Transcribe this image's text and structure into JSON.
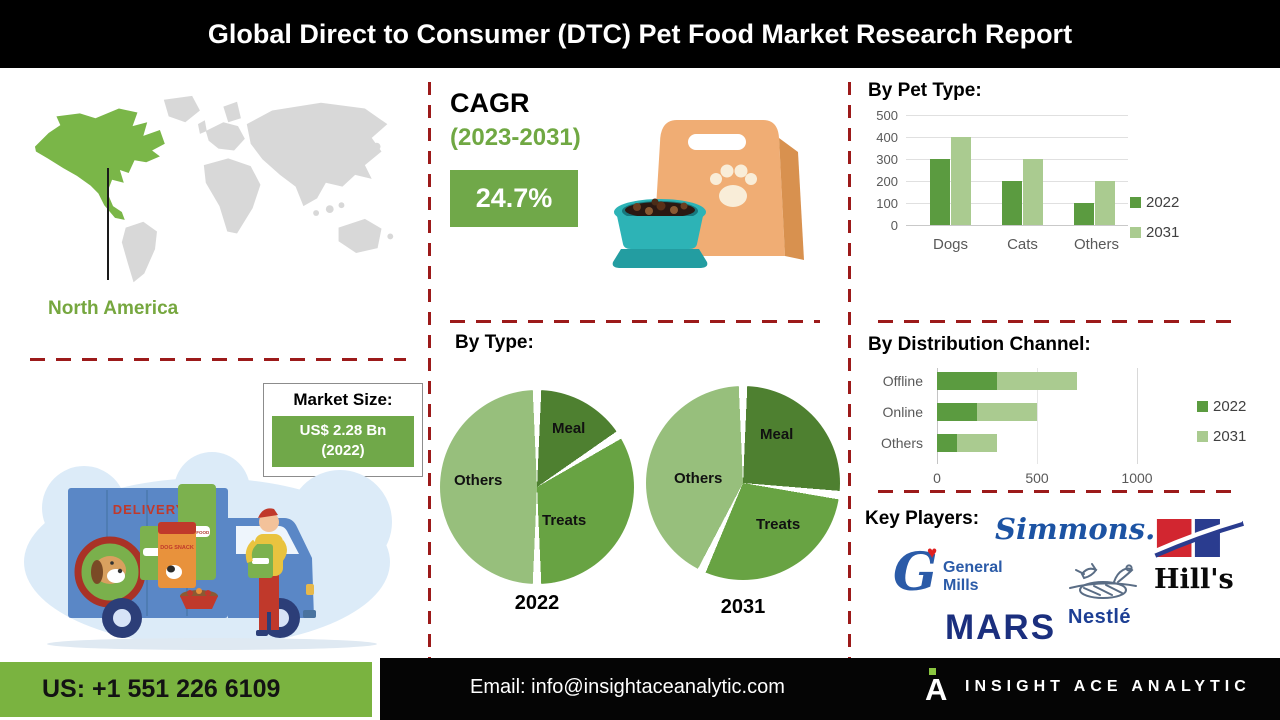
{
  "header": {
    "title": "Global Direct to Consumer (DTC) Pet Food Market Research Report"
  },
  "left": {
    "region_label": "North America",
    "market_size": {
      "label": "Market Size:",
      "value": "US$ 2.28 Bn",
      "year": "(2022)"
    },
    "truck": {
      "delivery": "DELIVERY",
      "bag_snack": "DOG SNACK",
      "bag_food": "DOG FOOD"
    }
  },
  "middle": {
    "cagr": {
      "label": "CAGR",
      "period": "(2023-2031)",
      "value": "24.7%"
    },
    "by_type_title": "By Type:"
  },
  "right": {
    "pet_type_title": "By Pet Type:",
    "distribution_title": "By  Distribution Channel:",
    "key_players_label": "Key Players:",
    "players": {
      "simmons": "Simmons.",
      "general_mills": [
        "General",
        "Mills"
      ],
      "hills": "Hill's",
      "nestle": "Nestlé",
      "mars": "MARS"
    }
  },
  "footer": {
    "phone": "US: +1 551 226 6109",
    "email": "Email: info@insightaceanalytic.com",
    "brand": "INSIGHT ACE ANALYTIC"
  },
  "colors": {
    "accent_green": "#70a849",
    "bright_green": "#7ab340",
    "dashed_red": "#9c1a1a",
    "series_2022": "#5b9b40",
    "series_2031": "#aacb90"
  },
  "chart_data": [
    {
      "id": "pet_type",
      "type": "bar",
      "title": "By Pet Type:",
      "categories": [
        "Dogs",
        "Cats",
        "Others"
      ],
      "series": [
        {
          "name": "2022",
          "values": [
            300,
            200,
            100
          ],
          "color": "#5b9b40"
        },
        {
          "name": "2031",
          "values": [
            400,
            300,
            200
          ],
          "color": "#aacb90"
        }
      ],
      "ylim": [
        0,
        500
      ],
      "ytick_step": 100,
      "grid": true,
      "legend_position": "right"
    },
    {
      "id": "by_type",
      "type": "pie",
      "title": "By Type:",
      "pies": [
        {
          "caption": "2022",
          "slices": [
            {
              "label": "Meal",
              "value": 16,
              "color": "#4e8030"
            },
            {
              "label": "Treats",
              "value": 34,
              "color": "#68a343"
            },
            {
              "label": "Others",
              "value": 50,
              "color": "#97bf7c"
            }
          ]
        },
        {
          "caption": "2031",
          "slices": [
            {
              "label": "Meal",
              "value": 27,
              "color": "#4e8030"
            },
            {
              "label": "Treats",
              "value": 30,
              "color": "#68a343"
            },
            {
              "label": "Others",
              "value": 43,
              "color": "#97bf7c"
            }
          ]
        }
      ]
    },
    {
      "id": "distribution",
      "type": "bar",
      "orientation": "horizontal-stacked",
      "title": "By Distribution Channel:",
      "categories": [
        "Offline",
        "Online",
        "Others"
      ],
      "series": [
        {
          "name": "2022",
          "values": [
            300,
            200,
            100
          ],
          "color": "#5b9b40"
        },
        {
          "name": "2031",
          "values": [
            400,
            300,
            200
          ],
          "color": "#aacb90"
        }
      ],
      "xlim": [
        0,
        1000
      ],
      "xticks": [
        0,
        500,
        1000
      ],
      "legend_position": "right"
    }
  ]
}
